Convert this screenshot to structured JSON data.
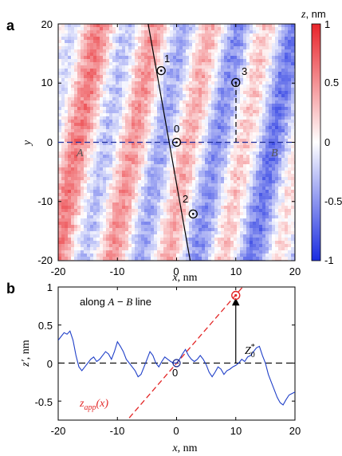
{
  "panel_a": {
    "label": "a",
    "colorbar_title": "z, nm",
    "colorbar_ticks": [
      "1",
      "0.5",
      "0",
      "-0.5",
      "-1"
    ],
    "x_ticks": [
      "-20",
      "-10",
      "0",
      "10",
      "20"
    ],
    "y_ticks": [
      "20",
      "10",
      "0",
      "-10",
      "-20"
    ],
    "xlabel_var": "x",
    "xlabel_unit": ", nm",
    "ylabel": "y",
    "point_labels": [
      "1",
      "0",
      "2",
      "3"
    ],
    "label_A": "A",
    "label_B": "B",
    "colors": {
      "positive": "#e8242a",
      "negative": "#1a2ce0",
      "zero": "#ffffff"
    }
  },
  "panel_b": {
    "label": "b",
    "legend_text": "along A − B line",
    "x_ticks": [
      "-20",
      "-10",
      "0",
      "10",
      "20"
    ],
    "y_ticks": [
      "1",
      "0.5",
      "0",
      "-0.5"
    ],
    "xlabel_var": "x",
    "xlabel_unit": ", nm",
    "ylabel_var": "z′",
    "ylabel_unit": ", nm",
    "point_label_0": "0",
    "z0_label": "Z",
    "z0_sub": "0",
    "z0_sup": "*",
    "zapp_label": "z",
    "zapp_sub": "app",
    "zapp_arg": "(x)",
    "colors": {
      "profile": "#1f3fc8",
      "fit": "#e32727"
    }
  },
  "chart_data": [
    {
      "type": "heatmap",
      "title": "",
      "xlabel": "x, nm",
      "ylabel": "y",
      "xlim": [
        -20,
        20
      ],
      "ylim": [
        -20,
        20
      ],
      "colorbar": {
        "label": "z, nm",
        "range": [
          -1,
          1
        ]
      },
      "line": {
        "x_top": -4.8,
        "x_bottom": 2.3
      },
      "points": [
        {
          "label": "1",
          "x": -2.6,
          "y": 12.1
        },
        {
          "label": "0",
          "x": 0,
          "y": 0
        },
        {
          "label": "2",
          "x": 2.8,
          "y": -12.1
        },
        {
          "label": "3",
          "x": 10,
          "y": 10.1
        }
      ],
      "dashed_line_y": 0,
      "endpoints": {
        "A": -20,
        "B": 20
      }
    },
    {
      "type": "line",
      "title": "",
      "xlabel": "x, nm",
      "ylabel": "z′, nm",
      "xlim": [
        -20,
        20
      ],
      "ylim": [
        -0.75,
        1
      ],
      "series": [
        {
          "name": "",
          "x": [
            -20,
            -19.5,
            -19,
            -18.5,
            -18,
            -17.5,
            -17,
            -16.5,
            -16,
            -15.5,
            -15,
            -14.5,
            -14,
            -13.5,
            -13,
            -12.5,
            -12,
            -11.5,
            -11,
            -10.5,
            -10,
            -9.5,
            -9,
            -8.5,
            -8,
            -7.5,
            -7,
            -6.5,
            -6,
            -5.5,
            -5,
            -4.5,
            -4,
            -3.5,
            -3,
            -2.5,
            -2,
            -1.5,
            -1,
            -0.5,
            0,
            0.5,
            1,
            1.5,
            2,
            2.5,
            3,
            3.5,
            4,
            4.5,
            5,
            5.5,
            6,
            6.5,
            7,
            7.5,
            8,
            8.5,
            9,
            9.5,
            10,
            10.5,
            11,
            11.5,
            12,
            12.5,
            13,
            13.5,
            14,
            14.5,
            15,
            15.5,
            16,
            16.5,
            17,
            17.5,
            18,
            18.5,
            19,
            19.5,
            20
          ],
          "y": [
            0.3,
            0.35,
            0.4,
            0.38,
            0.42,
            0.3,
            0.1,
            -0.05,
            -0.1,
            -0.05,
            0.0,
            0.05,
            0.08,
            0.02,
            0.05,
            0.1,
            0.15,
            0.12,
            0.05,
            0.15,
            0.28,
            0.22,
            0.15,
            0.05,
            0.0,
            -0.05,
            -0.1,
            -0.18,
            -0.15,
            -0.05,
            0.05,
            0.15,
            0.1,
            0.0,
            -0.05,
            0.02,
            0.08,
            0.05,
            0.02,
            0.0,
            0.0,
            0.05,
            0.12,
            0.18,
            0.1,
            0.05,
            0.02,
            0.05,
            0.1,
            0.05,
            -0.02,
            -0.12,
            -0.18,
            -0.12,
            -0.05,
            -0.08,
            -0.15,
            -0.1,
            -0.08,
            -0.05,
            -0.03,
            0.0,
            0.05,
            0.02,
            0.08,
            0.1,
            0.15,
            0.2,
            0.22,
            0.1,
            0.0,
            -0.15,
            -0.25,
            -0.35,
            -0.45,
            -0.52,
            -0.55,
            -0.48,
            -0.42,
            -0.4,
            -0.38
          ]
        },
        {
          "name": "",
          "x": [
            -8,
            11.5
          ],
          "y": [
            -0.72,
            1.03
          ]
        }
      ],
      "zero_line_y": 0,
      "markers": [
        {
          "label": "0",
          "x": 0,
          "y": 0
        },
        {
          "label": "",
          "x": 10,
          "y": 0.89
        }
      ],
      "arrow": {
        "x": 10,
        "y_from": 0,
        "y_to": 0.89
      }
    }
  ]
}
